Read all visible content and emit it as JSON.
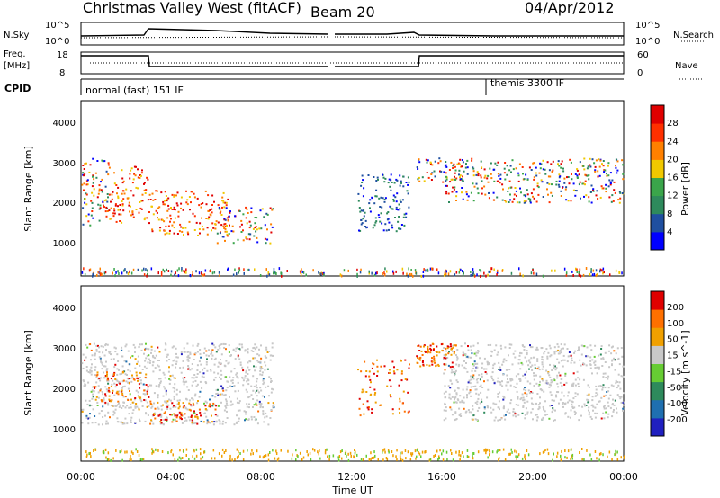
{
  "header": {
    "station": "Christmas Valley West (fitACF)",
    "beam": "Beam 20",
    "date": "04/Apr/2012"
  },
  "panels": {
    "nsky_label": "N.Sky",
    "nsearch_label": "N.Search",
    "noise_ticks_left": [
      "10^5",
      "10^0"
    ],
    "noise_ticks_right": [
      "10^5",
      "10^0"
    ],
    "freq_label_1": "Freq.",
    "freq_label_2": "[MHz]",
    "freq_ticks": [
      "18",
      "8"
    ],
    "nave_label": "Nave",
    "nave_ticks": [
      "60",
      "0"
    ],
    "cpid_label": "CPID",
    "cpid_1": "normal (fast) 151 IF",
    "cpid_2": "themis 3300 IF"
  },
  "axes": {
    "xlabel": "Time UT",
    "xticks": [
      "00:00",
      "04:00",
      "08:00",
      "12:00",
      "16:00",
      "20:00",
      "00:00"
    ],
    "ylabel": "Slant Range [km]",
    "yticks": [
      "1000",
      "2000",
      "3000",
      "4000"
    ]
  },
  "power_scale": {
    "label": "Power [dB]",
    "ticks": [
      "4",
      "8",
      "12",
      "16",
      "20",
      "24",
      "28"
    ],
    "colors": [
      "#0000ff",
      "#1f4fa0",
      "#2e8a5c",
      "#3aa54a",
      "#f0c800",
      "#ff8000",
      "#ff3000",
      "#e00000"
    ]
  },
  "velocity_scale": {
    "label": "Velocity [m s^-1]",
    "ticks": [
      "200",
      "100",
      "50",
      "15",
      "-15",
      "-50",
      "-100",
      "-200"
    ],
    "colors": [
      "#2020c0",
      "#1f6fb0",
      "#2e8a5c",
      "#66cc33",
      "#c8c8c8",
      "#f0a000",
      "#ff7000",
      "#e00000"
    ]
  },
  "chart_data": {
    "type": "heatmap",
    "x_range_hours": [
      0,
      24
    ],
    "y_range_km": [
      180,
      4500
    ],
    "power_echo_regions": [
      {
        "t0": 0.0,
        "t1": 1.2,
        "r0": 1400,
        "r1": 3100,
        "power": "mixed"
      },
      {
        "t0": 1.2,
        "t1": 3.0,
        "r0": 1500,
        "r1": 2900,
        "power": "high"
      },
      {
        "t0": 3.0,
        "t1": 6.5,
        "r0": 1200,
        "r1": 2300,
        "power": "high"
      },
      {
        "t0": 6.0,
        "t1": 8.5,
        "r0": 1000,
        "r1": 1900,
        "power": "mixed"
      },
      {
        "t0": 12.2,
        "t1": 14.5,
        "r0": 1300,
        "r1": 2700,
        "power": "low"
      },
      {
        "t0": 14.8,
        "t1": 17.0,
        "r0": 2500,
        "r1": 3100,
        "power": "mixed"
      },
      {
        "t0": 16.0,
        "t1": 24.0,
        "r0": 2000,
        "r1": 3100,
        "power": "mixed"
      }
    ],
    "velocity_ground_scatter_regions": [
      {
        "t0": 0.0,
        "t1": 8.5,
        "r0": 1100,
        "r1": 3100
      },
      {
        "t0": 16.0,
        "t1": 24.0,
        "r0": 1200,
        "r1": 3100
      }
    ]
  }
}
